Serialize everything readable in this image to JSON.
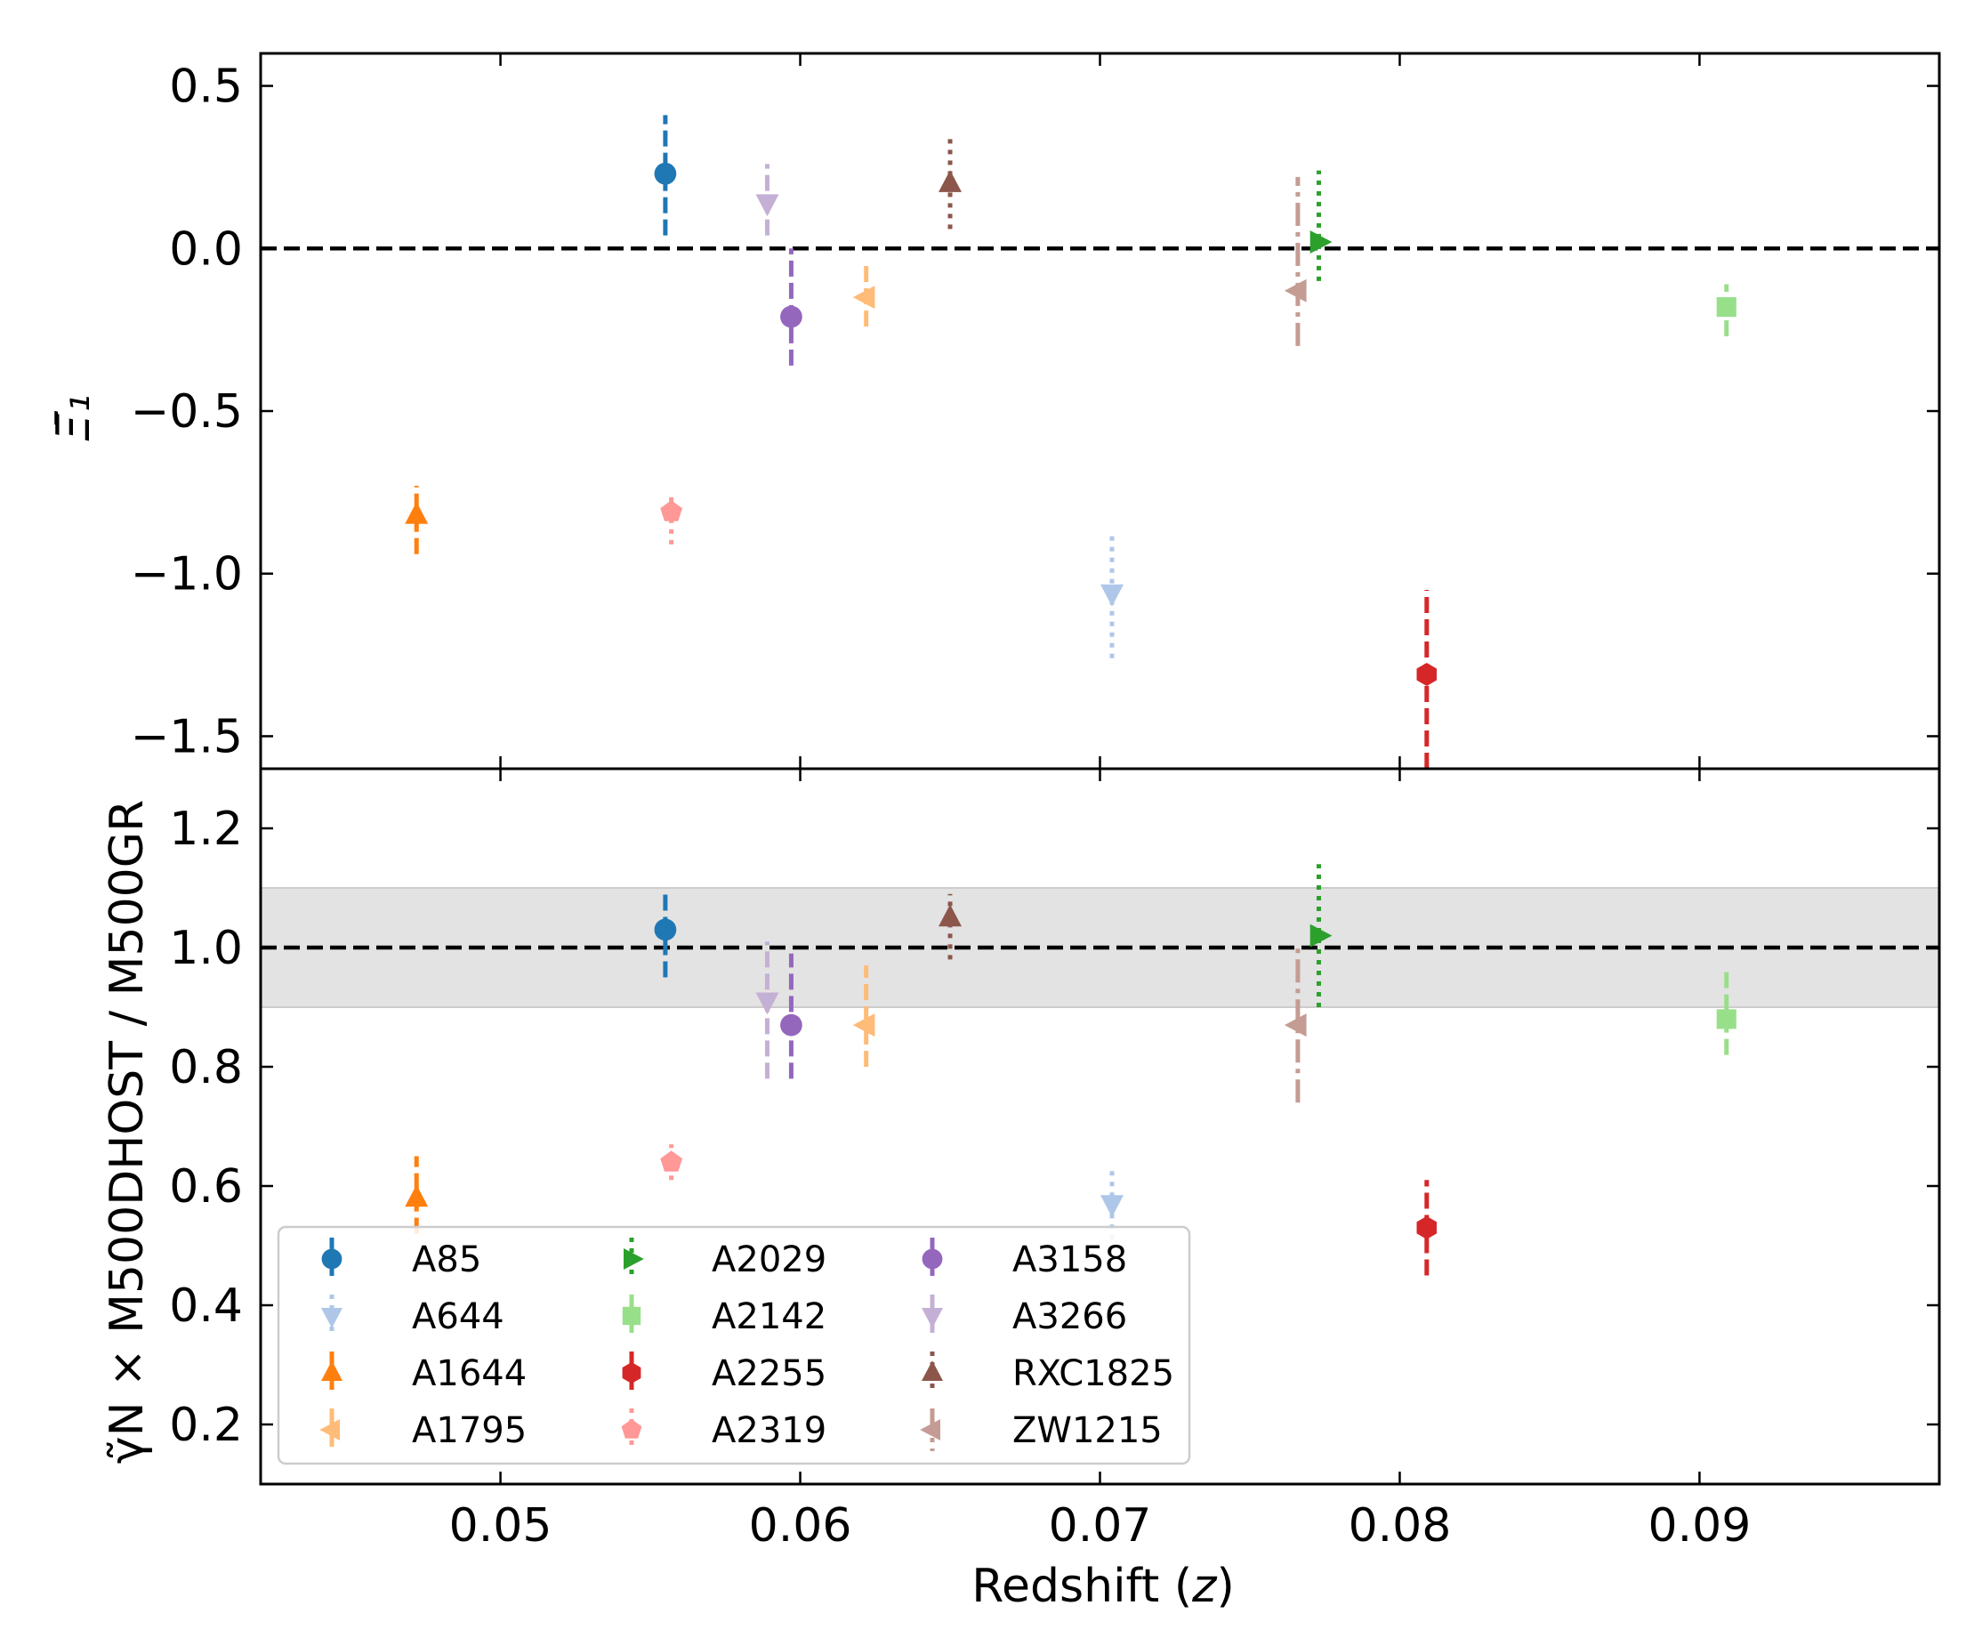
{
  "chart_data": {
    "type": "scatter",
    "xlabel_text": "Redshift",
    "xlabel_var": "z",
    "xlim": [
      0.042,
      0.098
    ],
    "xticks": [
      0.05,
      0.06,
      0.07,
      0.08,
      0.09
    ],
    "xtick_labels": [
      "0.05",
      "0.06",
      "0.07",
      "0.08",
      "0.09"
    ],
    "colors": {
      "A85": "#1f77b4",
      "A644": "#aec7e8",
      "A1644": "#ff7f0e",
      "A1795": "#ffbb78",
      "A2029": "#2ca02c",
      "A2142": "#98df8a",
      "A2255": "#d62728",
      "A2319": "#ff9896",
      "A3158": "#9467bd",
      "A3266": "#c5b0d5",
      "RXC1825": "#8c564b",
      "ZW1215": "#c49c94"
    },
    "panels": [
      {
        "name": "top",
        "ylabel": "Ξ̄₁",
        "ylim": [
          -1.6,
          0.6
        ],
        "yticks": [
          0.5,
          0.0,
          -0.5,
          -1.0,
          -1.5
        ],
        "ytick_labels": [
          "0.5",
          "0.0",
          "−0.5",
          "−1.0",
          "−1.5"
        ],
        "reference_line": 0.0,
        "band": null,
        "series": [
          {
            "name": "A85",
            "z": 0.0555,
            "y": 0.23,
            "ylow": 0.04,
            "yhigh": 0.41
          },
          {
            "name": "A644",
            "z": 0.0704,
            "y": -1.06,
            "ylow": -1.26,
            "yhigh": -0.88
          },
          {
            "name": "A1644",
            "z": 0.0472,
            "y": -0.82,
            "ylow": -0.94,
            "yhigh": -0.73
          },
          {
            "name": "A1795",
            "z": 0.0622,
            "y": -0.15,
            "ylow": -0.24,
            "yhigh": -0.04
          },
          {
            "name": "A2029",
            "z": 0.0773,
            "y": 0.02,
            "ylow": -0.1,
            "yhigh": 0.24
          },
          {
            "name": "A2142",
            "z": 0.0909,
            "y": -0.18,
            "ylow": -0.27,
            "yhigh": -0.11
          },
          {
            "name": "A2255",
            "z": 0.0809,
            "y": -1.31,
            "ylow": -1.6,
            "yhigh": -1.05
          },
          {
            "name": "A2319",
            "z": 0.0557,
            "y": -0.81,
            "ylow": -0.91,
            "yhigh": -0.75
          },
          {
            "name": "A3158",
            "z": 0.0597,
            "y": -0.21,
            "ylow": -0.36,
            "yhigh": 0.0
          },
          {
            "name": "A3266",
            "z": 0.0589,
            "y": 0.14,
            "ylow": 0.04,
            "yhigh": 0.26
          },
          {
            "name": "RXC1825",
            "z": 0.065,
            "y": 0.2,
            "ylow": 0.06,
            "yhigh": 0.35
          },
          {
            "name": "ZW1215",
            "z": 0.0766,
            "y": -0.13,
            "ylow": -0.3,
            "yhigh": 0.22
          }
        ]
      },
      {
        "name": "bottom",
        "ylabel": "γ̃N × M500DHOST / M500GR",
        "ylim": [
          0.1,
          1.3
        ],
        "yticks": [
          1.2,
          1.0,
          0.8,
          0.6,
          0.4,
          0.2
        ],
        "ytick_labels": [
          "1.2",
          "1.0",
          "0.8",
          "0.6",
          "0.4",
          "0.2"
        ],
        "reference_line": 1.0,
        "band": [
          0.9,
          1.1
        ],
        "series": [
          {
            "name": "A85",
            "z": 0.0555,
            "y": 1.03,
            "ylow": 0.95,
            "yhigh": 1.09
          },
          {
            "name": "A644",
            "z": 0.0704,
            "y": 0.57,
            "ylow": 0.51,
            "yhigh": 0.63
          },
          {
            "name": "A1644",
            "z": 0.0472,
            "y": 0.58,
            "ylow": 0.52,
            "yhigh": 0.65
          },
          {
            "name": "A1795",
            "z": 0.0622,
            "y": 0.87,
            "ylow": 0.8,
            "yhigh": 0.97
          },
          {
            "name": "A2029",
            "z": 0.0773,
            "y": 1.02,
            "ylow": 0.9,
            "yhigh": 1.14
          },
          {
            "name": "A2142",
            "z": 0.0909,
            "y": 0.88,
            "ylow": 0.82,
            "yhigh": 0.96
          },
          {
            "name": "A2255",
            "z": 0.0809,
            "y": 0.53,
            "ylow": 0.45,
            "yhigh": 0.61
          },
          {
            "name": "A2319",
            "z": 0.0557,
            "y": 0.64,
            "ylow": 0.61,
            "yhigh": 0.67
          },
          {
            "name": "A3158",
            "z": 0.0597,
            "y": 0.87,
            "ylow": 0.78,
            "yhigh": 0.99
          },
          {
            "name": "A3266",
            "z": 0.0589,
            "y": 0.91,
            "ylow": 0.78,
            "yhigh": 1.01
          },
          {
            "name": "RXC1825",
            "z": 0.065,
            "y": 1.05,
            "ylow": 0.98,
            "yhigh": 1.09
          },
          {
            "name": "ZW1215",
            "z": 0.0766,
            "y": 0.87,
            "ylow": 0.74,
            "yhigh": 1.0
          }
        ]
      }
    ],
    "legend": {
      "location": "lower-left",
      "entries": [
        "A85",
        "A644",
        "A1644",
        "A1795",
        "A2029",
        "A2142",
        "A2255",
        "A2319",
        "A3158",
        "A3266",
        "RXC1825",
        "ZW1215"
      ]
    }
  }
}
